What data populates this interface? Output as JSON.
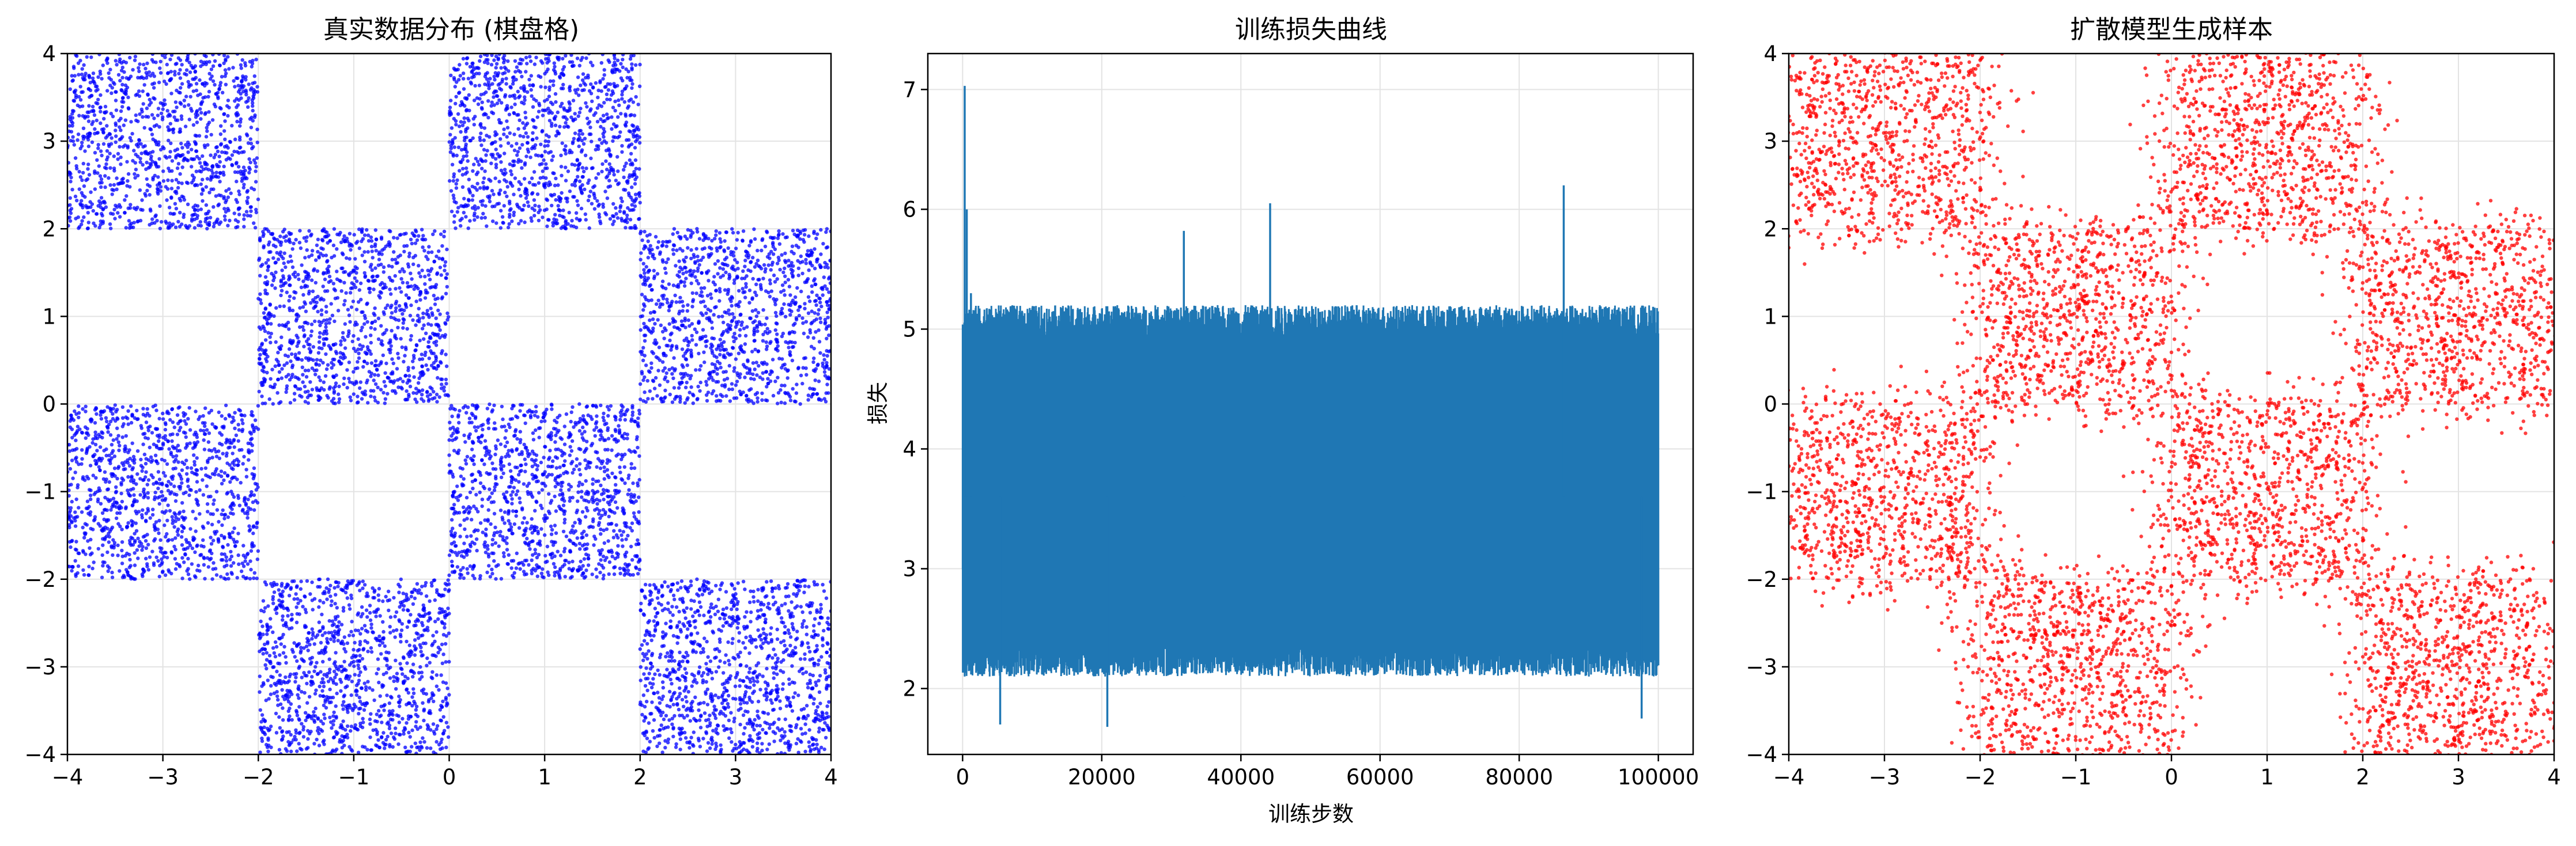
{
  "chart_data": [
    {
      "type": "scatter",
      "title": "真实数据分布 (棋盘格)",
      "xlabel": "",
      "ylabel": "",
      "xlim": [
        -4,
        4
      ],
      "ylim": [
        -4,
        4
      ],
      "xticks": [
        "−4",
        "−3",
        "−2",
        "−1",
        "0",
        "1",
        "2",
        "3",
        "4"
      ],
      "yticks": [
        "−4",
        "−3",
        "−2",
        "−1",
        "0",
        "1",
        "2",
        "3",
        "4"
      ],
      "grid": true,
      "color": "#0000ff",
      "distribution": "uniform samples in the dark squares of a 4×4 checkerboard on [-4,4]²",
      "series": [
        {
          "values": [
            {
              "x_range": [
                -4,
                -2
              ],
              "y_range": [
                2,
                4
              ]
            },
            {
              "x_range": [
                0,
                2
              ],
              "y_range": [
                2,
                4
              ]
            },
            {
              "x_range": [
                -2,
                0
              ],
              "y_range": [
                0,
                2
              ]
            },
            {
              "x_range": [
                2,
                4
              ],
              "y_range": [
                0,
                2
              ]
            },
            {
              "x_range": [
                -4,
                -2
              ],
              "y_range": [
                -2,
                0
              ]
            },
            {
              "x_range": [
                0,
                2
              ],
              "y_range": [
                -2,
                0
              ]
            },
            {
              "x_range": [
                -2,
                0
              ],
              "y_range": [
                -4,
                -2
              ]
            },
            {
              "x_range": [
                2,
                4
              ],
              "y_range": [
                -4,
                -2
              ]
            }
          ]
        }
      ]
    },
    {
      "type": "line",
      "title": "训练损失曲线",
      "xlabel": "训练步数",
      "ylabel": "损失",
      "xlim": [
        -5000,
        105000
      ],
      "ylim": [
        1.45,
        7.3
      ],
      "xticks": [
        "0",
        "20000",
        "40000",
        "60000",
        "80000",
        "100000"
      ],
      "yticks": [
        "2",
        "3",
        "4",
        "5",
        "6",
        "7"
      ],
      "grid": true,
      "color": "#1f77b4",
      "series": [
        {
          "steps": [
            0,
            100000
          ],
          "initial": 7.03,
          "band_low": 2.4,
          "band_high": 5.0,
          "spikes": [
            {
              "x": 300,
              "y": 7.03
            },
            {
              "x": 600,
              "y": 6.0
            },
            {
              "x": 1200,
              "y": 5.3
            },
            {
              "x": 5400,
              "y": 1.7
            },
            {
              "x": 20800,
              "y": 1.68
            },
            {
              "x": 31800,
              "y": 5.82
            },
            {
              "x": 44200,
              "y": 6.05
            },
            {
              "x": 86400,
              "y": 6.2
            },
            {
              "x": 97600,
              "y": 1.75
            }
          ]
        }
      ]
    },
    {
      "type": "scatter",
      "title": "扩散模型生成样本",
      "xlabel": "",
      "ylabel": "",
      "xlim": [
        -4,
        4
      ],
      "ylim": [
        -4,
        4
      ],
      "xticks": [
        "−4",
        "−3",
        "−2",
        "−1",
        "0",
        "1",
        "2",
        "3",
        "4"
      ],
      "yticks": [
        "−4",
        "−3",
        "−2",
        "−1",
        "0",
        "1",
        "2",
        "3",
        "4"
      ],
      "grid": true,
      "color": "#ff0000",
      "distribution": "generated samples approximating the checkerboard with soft edges",
      "series": [
        {
          "values": [
            {
              "x_range": [
                -4,
                -2
              ],
              "y_range": [
                2,
                4
              ]
            },
            {
              "x_range": [
                0,
                2
              ],
              "y_range": [
                2,
                4
              ]
            },
            {
              "x_range": [
                -2,
                0
              ],
              "y_range": [
                0,
                2
              ]
            },
            {
              "x_range": [
                2,
                4
              ],
              "y_range": [
                0,
                2
              ]
            },
            {
              "x_range": [
                -4,
                -2
              ],
              "y_range": [
                -2,
                0
              ]
            },
            {
              "x_range": [
                0,
                2
              ],
              "y_range": [
                -2,
                0
              ]
            },
            {
              "x_range": [
                -2,
                0
              ],
              "y_range": [
                -4,
                -2
              ]
            },
            {
              "x_range": [
                2,
                4
              ],
              "y_range": [
                -4,
                -2
              ]
            }
          ]
        }
      ]
    }
  ]
}
